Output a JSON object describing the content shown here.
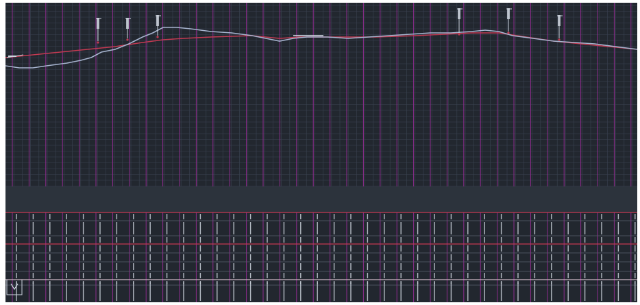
{
  "app": {
    "title": "",
    "colors": {
      "background": "#22272f",
      "grid_minor": "#3b4352",
      "grid_major": "#8f2c8f",
      "design_line": "#c43a52",
      "ground_line": "#a7b4cf",
      "labels": "#cfd6e0",
      "band": "#2c333c"
    }
  },
  "drawing": {
    "ucs_icon": "ucs-axis-icon",
    "tick_markers": [
      {
        "name": "marker-1",
        "label": "|||"
      },
      {
        "name": "marker-2",
        "label": "|||"
      },
      {
        "name": "marker-3",
        "label": "|||"
      },
      {
        "name": "marker-4",
        "label": "|||"
      },
      {
        "name": "marker-5",
        "label": "|||"
      },
      {
        "name": "marker-6",
        "label": "|||"
      }
    ]
  }
}
